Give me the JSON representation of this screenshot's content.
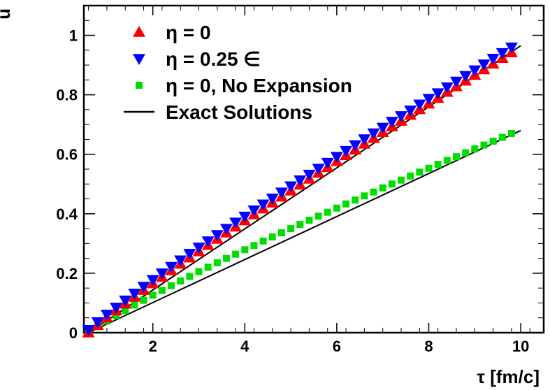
{
  "chart_data": {
    "type": "scatter",
    "xlabel": "τ [fm/c]",
    "ylabel": "u",
    "xlim": [
      0.5,
      10.5
    ],
    "ylim": [
      0,
      1.1
    ],
    "xticks": [
      2,
      4,
      6,
      8,
      10
    ],
    "xtick_labels": [
      "2",
      "4",
      "6",
      "8",
      "10"
    ],
    "yticks": [
      0,
      0.2,
      0.4,
      0.6,
      0.8,
      1
    ],
    "ytick_labels": [
      "0",
      "0.2",
      "0.4",
      "0.6",
      "0.8",
      "1"
    ],
    "grid": false,
    "legend_position": "top-left",
    "series": [
      {
        "name": "η = 0",
        "marker": "triangle-up",
        "color": "#ff0000",
        "x": [
          0.6,
          0.8,
          1.0,
          1.2,
          1.4,
          1.6,
          1.8,
          2.0,
          2.2,
          2.4,
          2.6,
          2.8,
          3.0,
          3.2,
          3.4,
          3.6,
          3.8,
          4.0,
          4.2,
          4.4,
          4.6,
          4.8,
          5.0,
          5.2,
          5.4,
          5.6,
          5.8,
          6.0,
          6.2,
          6.4,
          6.6,
          6.8,
          7.0,
          7.2,
          7.4,
          7.6,
          7.8,
          8.0,
          8.2,
          8.4,
          8.6,
          8.8,
          9.0,
          9.2,
          9.4,
          9.6,
          9.8
        ],
        "y": [
          0.0,
          0.025,
          0.05,
          0.074,
          0.097,
          0.12,
          0.143,
          0.165,
          0.187,
          0.209,
          0.231,
          0.252,
          0.273,
          0.294,
          0.315,
          0.336,
          0.356,
          0.377,
          0.397,
          0.417,
          0.437,
          0.457,
          0.477,
          0.497,
          0.517,
          0.537,
          0.556,
          0.576,
          0.596,
          0.615,
          0.635,
          0.654,
          0.674,
          0.693,
          0.712,
          0.732,
          0.751,
          0.77,
          0.789,
          0.809,
          0.828,
          0.847,
          0.866,
          0.885,
          0.904,
          0.923,
          0.942
        ]
      },
      {
        "name": "η = 0.25 ∈",
        "marker": "triangle-down",
        "color": "#0000ff",
        "x": [
          0.6,
          0.8,
          1.0,
          1.2,
          1.4,
          1.6,
          1.8,
          2.0,
          2.2,
          2.4,
          2.6,
          2.8,
          3.0,
          3.2,
          3.4,
          3.6,
          3.8,
          4.0,
          4.2,
          4.4,
          4.6,
          4.8,
          5.0,
          5.2,
          5.4,
          5.6,
          5.8,
          6.0,
          6.2,
          6.4,
          6.6,
          6.8,
          7.0,
          7.2,
          7.4,
          7.6,
          7.8,
          8.0,
          8.2,
          8.4,
          8.6,
          8.8,
          9.0,
          9.2,
          9.4,
          9.6,
          9.8
        ],
        "y": [
          0.01,
          0.036,
          0.061,
          0.085,
          0.109,
          0.132,
          0.155,
          0.178,
          0.2,
          0.222,
          0.244,
          0.266,
          0.287,
          0.308,
          0.329,
          0.35,
          0.371,
          0.391,
          0.412,
          0.432,
          0.452,
          0.472,
          0.493,
          0.513,
          0.532,
          0.552,
          0.572,
          0.592,
          0.612,
          0.631,
          0.651,
          0.671,
          0.69,
          0.71,
          0.729,
          0.748,
          0.768,
          0.787,
          0.806,
          0.826,
          0.845,
          0.864,
          0.883,
          0.903,
          0.922,
          0.941,
          0.96
        ]
      },
      {
        "name": "η = 0, No Expansion",
        "marker": "square",
        "color": "#00dd00",
        "x": [
          0.6,
          0.8,
          1.0,
          1.2,
          1.4,
          1.6,
          1.8,
          2.0,
          2.2,
          2.4,
          2.6,
          2.8,
          3.0,
          3.2,
          3.4,
          3.6,
          3.8,
          4.0,
          4.2,
          4.4,
          4.6,
          4.8,
          5.0,
          5.2,
          5.4,
          5.6,
          5.8,
          6.0,
          6.2,
          6.4,
          6.6,
          6.8,
          7.0,
          7.2,
          7.4,
          7.6,
          7.8,
          8.0,
          8.2,
          8.4,
          8.6,
          8.8,
          9.0,
          9.2,
          9.4,
          9.6,
          9.8
        ],
        "y": [
          0.0,
          0.02,
          0.039,
          0.058,
          0.075,
          0.093,
          0.109,
          0.126,
          0.142,
          0.158,
          0.174,
          0.189,
          0.205,
          0.22,
          0.235,
          0.25,
          0.264,
          0.279,
          0.293,
          0.308,
          0.322,
          0.336,
          0.35,
          0.364,
          0.378,
          0.392,
          0.405,
          0.419,
          0.433,
          0.446,
          0.46,
          0.473,
          0.487,
          0.5,
          0.513,
          0.527,
          0.54,
          0.553,
          0.566,
          0.579,
          0.592,
          0.605,
          0.618,
          0.631,
          0.644,
          0.657,
          0.67
        ]
      },
      {
        "name": "Exact Solutions",
        "marker": "line",
        "color": "#000000",
        "lines": [
          {
            "x": [
              0.6,
              10.0
            ],
            "y": [
              0.0,
              0.965
            ]
          },
          {
            "x": [
              0.6,
              10.0
            ],
            "y": [
              0.0,
              0.68
            ]
          }
        ]
      }
    ]
  },
  "legend": {
    "entries": [
      {
        "label": "η = 0",
        "marker": "triangle-up",
        "color": "#ff0000"
      },
      {
        "label": "η = 0.25 ∈",
        "marker": "triangle-down",
        "color": "#0000ff"
      },
      {
        "label": "η = 0, No Expansion",
        "marker": "square",
        "color": "#00dd00"
      },
      {
        "label": "Exact Solutions",
        "marker": "line",
        "color": "#000000"
      }
    ]
  }
}
